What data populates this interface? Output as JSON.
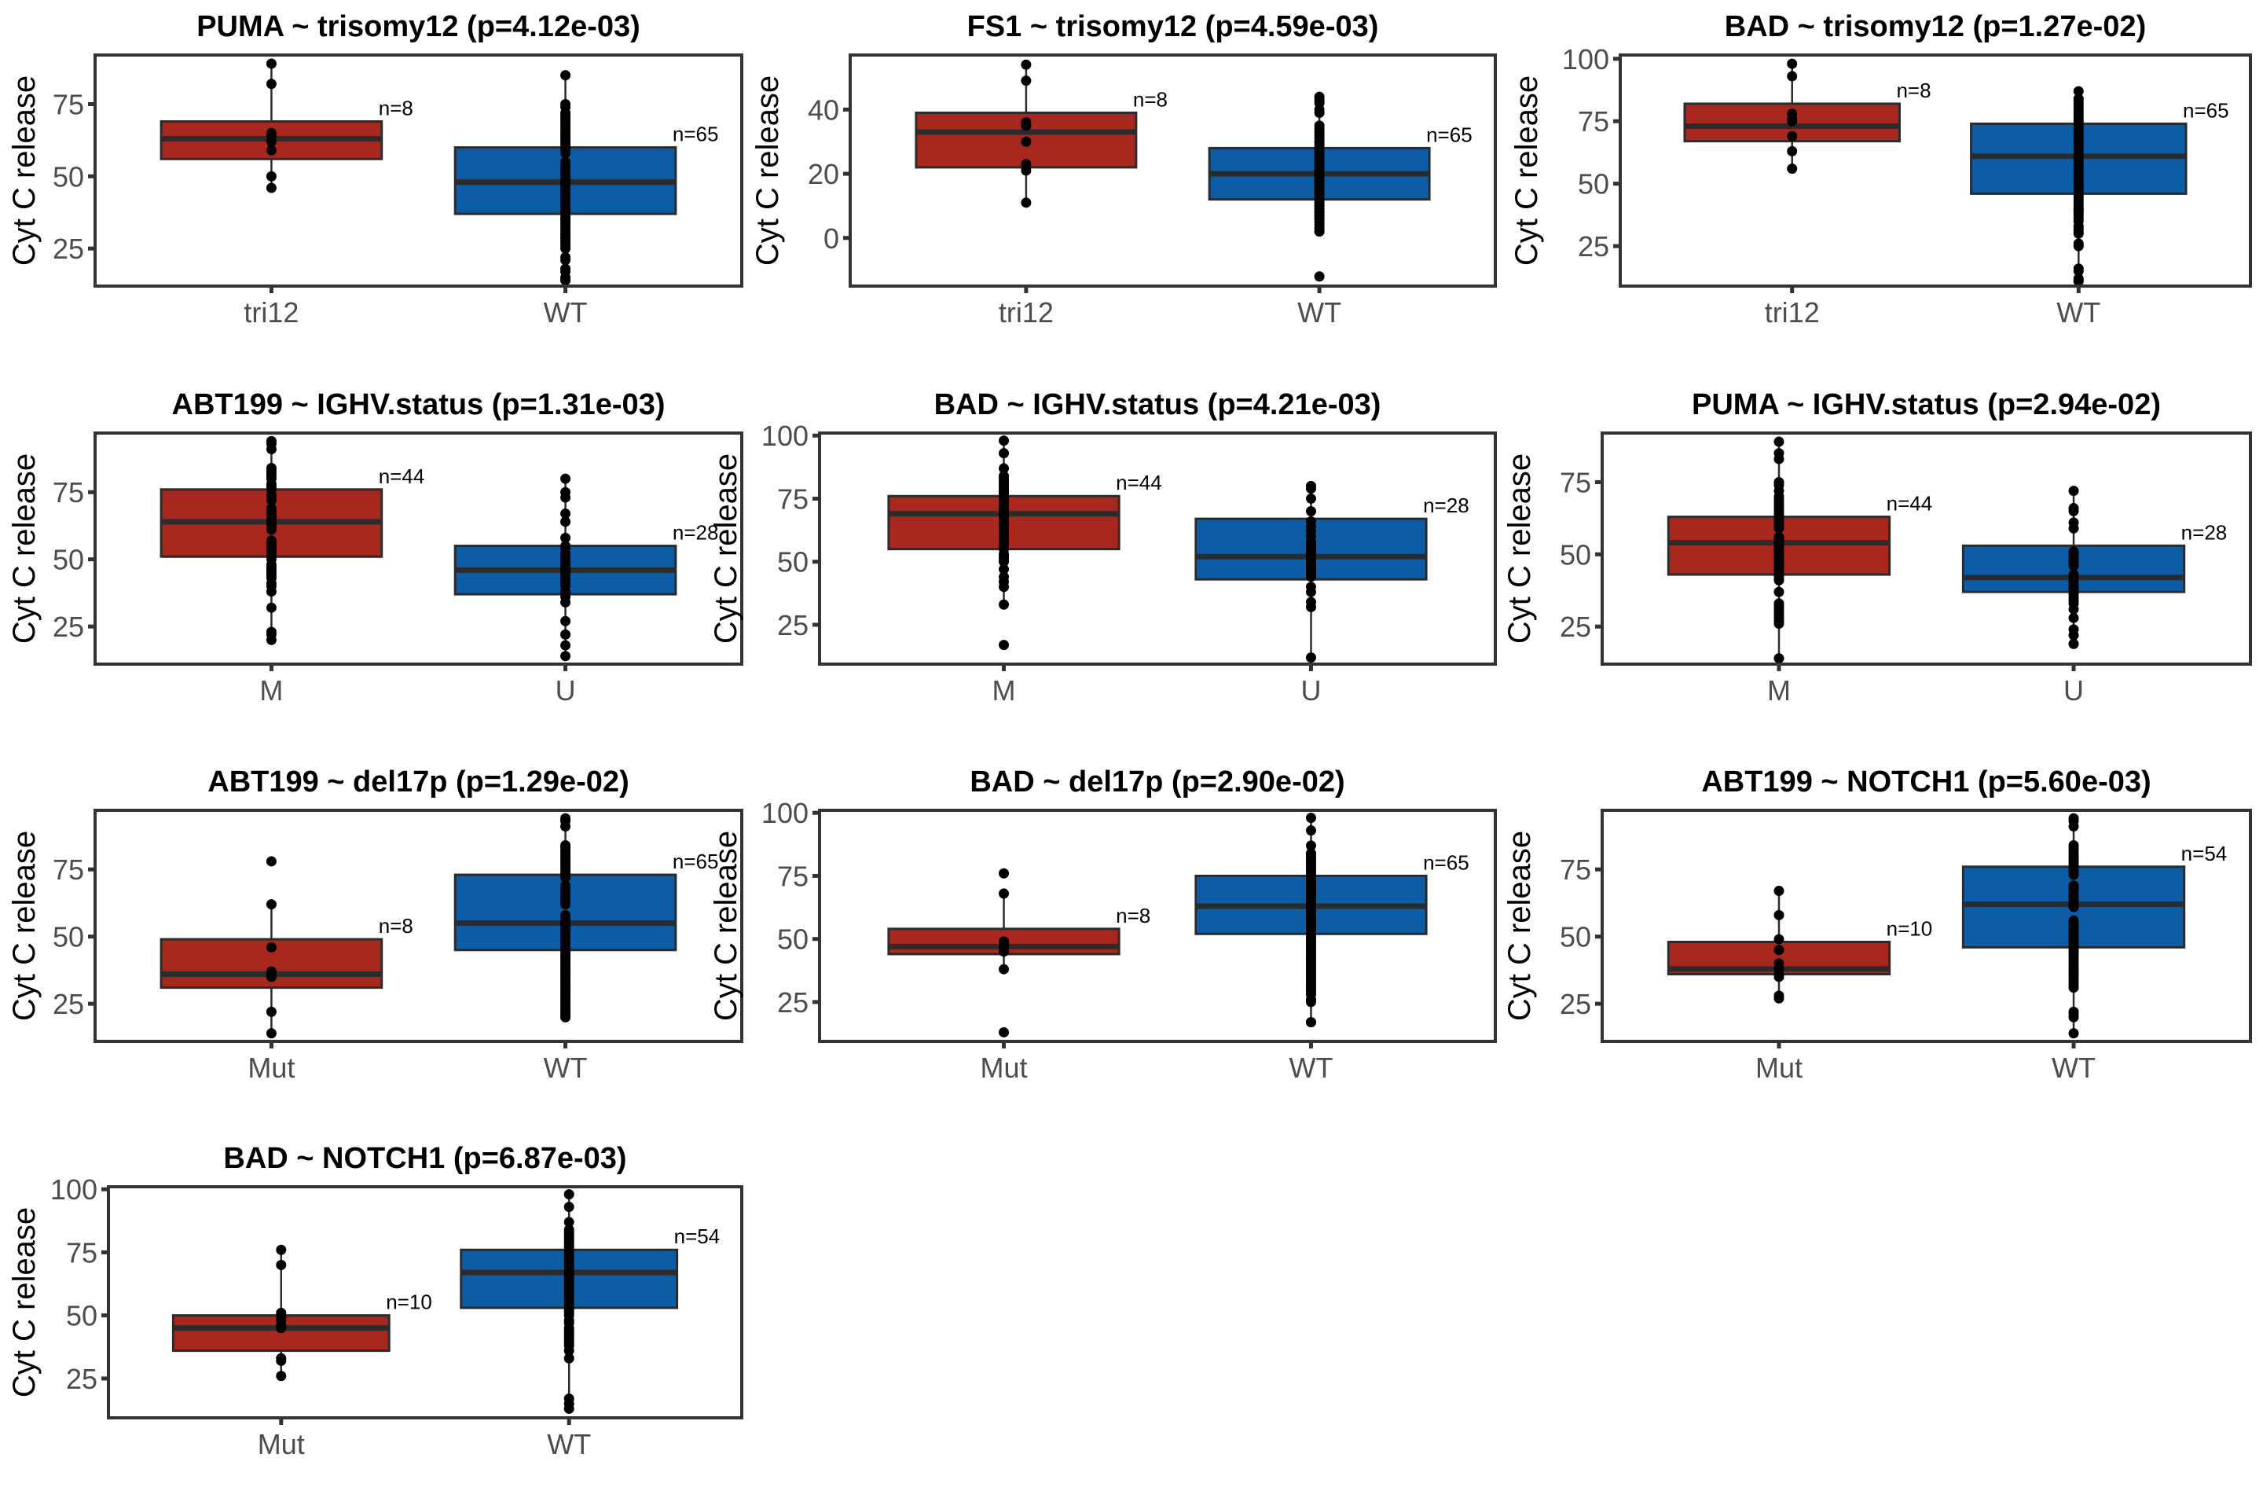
{
  "figure": {
    "colors": {
      "group1": "#A82820",
      "group2": "#0C5DA5",
      "outline": "#2B2B2B",
      "point": "#000000",
      "axis": "#333333"
    }
  },
  "chart_data": [
    {
      "type": "box",
      "title": "PUMA ~ trisomy12 (p=4.12e-03)",
      "ylabel": "Cyt C release",
      "xlabel": "",
      "ylim": [
        12,
        92
      ],
      "yticks": [
        25,
        50,
        75
      ],
      "groups": [
        {
          "name": "tri12",
          "n_label": "n=8",
          "whisker_low": 46,
          "q1": 56,
          "median": 63,
          "q3": 69,
          "whisker_high": 89,
          "points": [
            89,
            82,
            65,
            64,
            62,
            59,
            50,
            46
          ]
        },
        {
          "name": "WT",
          "n_label": "n=65",
          "whisker_low": 14,
          "q1": 37,
          "median": 48,
          "q3": 60,
          "whisker_high": 85,
          "points": [
            85,
            75,
            74,
            72,
            71,
            70,
            69,
            68,
            67,
            66,
            65,
            64,
            63,
            62,
            61,
            60,
            59,
            58,
            55,
            54,
            53,
            52,
            51,
            50,
            50,
            49,
            48,
            48,
            47,
            47,
            46,
            45,
            45,
            44,
            43,
            42,
            42,
            41,
            40,
            40,
            39,
            38,
            38,
            37,
            36,
            35,
            35,
            34,
            33,
            32,
            31,
            30,
            29,
            29,
            28,
            27,
            26,
            25,
            22,
            21,
            18,
            17,
            15,
            14,
            14
          ]
        }
      ]
    },
    {
      "type": "box",
      "title": "FS1 ~ trisomy12 (p=4.59e-03)",
      "ylabel": "Cyt C release",
      "xlabel": "",
      "ylim": [
        -15,
        57
      ],
      "yticks": [
        0,
        20,
        40
      ],
      "groups": [
        {
          "name": "tri12",
          "n_label": "n=8",
          "whisker_low": 11,
          "q1": 22,
          "median": 33,
          "q3": 39,
          "whisker_high": 54,
          "points": [
            54,
            49,
            36,
            35,
            30,
            23,
            21,
            11
          ]
        },
        {
          "name": "WT",
          "n_label": "n=65",
          "whisker_low": 2,
          "q1": 12,
          "median": 20,
          "q3": 28,
          "whisker_high": 44,
          "points": [
            44,
            43,
            42,
            40,
            39,
            35,
            34,
            33,
            32,
            31,
            30,
            30,
            29,
            28,
            28,
            27,
            27,
            26,
            25,
            25,
            24,
            24,
            23,
            23,
            22,
            22,
            21,
            21,
            20,
            20,
            20,
            19,
            19,
            18,
            18,
            17,
            17,
            16,
            16,
            15,
            15,
            14,
            14,
            13,
            13,
            12,
            12,
            11,
            11,
            10,
            10,
            9,
            9,
            8,
            8,
            7,
            7,
            6,
            6,
            5,
            4,
            3,
            2,
            2,
            -12
          ]
        }
      ]
    },
    {
      "type": "box",
      "title": "BAD ~ trisomy12 (p=1.27e-02)",
      "ylabel": "Cyt C release",
      "xlabel": "",
      "ylim": [
        9,
        101.5
      ],
      "yticks": [
        25,
        50,
        75,
        100
      ],
      "groups": [
        {
          "name": "tri12",
          "n_label": "n=8",
          "whisker_low": 56,
          "q1": 67,
          "median": 73,
          "q3": 82,
          "whisker_high": 98,
          "points": [
            98,
            93,
            78,
            76,
            75,
            69,
            63,
            56
          ]
        },
        {
          "name": "WT",
          "n_label": "n=65",
          "whisker_low": 11,
          "q1": 46,
          "median": 61,
          "q3": 74,
          "whisker_high": 87,
          "points": [
            87,
            84,
            83,
            82,
            81,
            80,
            79,
            78,
            77,
            76,
            75,
            74,
            73,
            72,
            71,
            70,
            69,
            68,
            67,
            66,
            65,
            64,
            63,
            62,
            61,
            61,
            60,
            59,
            58,
            57,
            56,
            55,
            54,
            53,
            52,
            51,
            50,
            50,
            49,
            48,
            47,
            46,
            45,
            44,
            43,
            42,
            41,
            40,
            40,
            39,
            38,
            37,
            36,
            35,
            33,
            32,
            31,
            30,
            26,
            25,
            16,
            15,
            12,
            11,
            11
          ]
        }
      ]
    },
    {
      "type": "box",
      "title": "ABT199 ~ IGHV.status (p=1.31e-03)",
      "ylabel": "Cyt C release",
      "xlabel": "",
      "ylim": [
        11,
        97
      ],
      "yticks": [
        25,
        50,
        75
      ],
      "groups": [
        {
          "name": "M",
          "n_label": "n=44",
          "whisker_low": 20,
          "q1": 51,
          "median": 64,
          "q3": 76,
          "whisker_high": 94,
          "points": [
            94,
            93,
            91,
            84,
            83,
            82,
            81,
            80,
            78,
            77,
            76,
            74,
            73,
            72,
            69,
            68,
            67,
            66,
            65,
            64,
            63,
            62,
            61,
            57,
            56,
            55,
            54,
            53,
            52,
            51,
            50,
            48,
            47,
            46,
            45,
            44,
            43,
            41,
            40,
            38,
            32,
            23,
            22,
            20
          ]
        },
        {
          "name": "U",
          "n_label": "n=28",
          "whisker_low": 14,
          "q1": 37,
          "median": 46,
          "q3": 55,
          "whisker_high": 80,
          "points": [
            80,
            75,
            73,
            67,
            64,
            58,
            55,
            54,
            52,
            51,
            50,
            49,
            48,
            47,
            46,
            45,
            44,
            43,
            42,
            41,
            40,
            38,
            36,
            34,
            27,
            22,
            18,
            14
          ]
        }
      ]
    },
    {
      "type": "box",
      "title": "BAD ~ IGHV.status (p=4.21e-03)",
      "ylabel": "Cyt C release",
      "xlabel": "",
      "ylim": [
        9.4,
        101
      ],
      "yticks": [
        25,
        50,
        75,
        100
      ],
      "groups": [
        {
          "name": "M",
          "n_label": "n=44",
          "whisker_low": 33,
          "q1": 55,
          "median": 69,
          "q3": 76,
          "whisker_high": 98,
          "points": [
            98,
            93,
            87,
            84,
            83,
            82,
            81,
            80,
            79,
            78,
            77,
            76,
            75,
            74,
            73,
            72,
            71,
            70,
            69,
            69,
            68,
            67,
            66,
            65,
            64,
            63,
            62,
            61,
            60,
            59,
            58,
            57,
            56,
            55,
            53,
            52,
            51,
            50,
            47,
            44,
            42,
            40,
            33,
            17
          ]
        },
        {
          "name": "U",
          "n_label": "n=28",
          "whisker_low": 12,
          "q1": 43,
          "median": 52,
          "q3": 67,
          "whisker_high": 80,
          "points": [
            80,
            79,
            75,
            70,
            66,
            64,
            62,
            60,
            58,
            57,
            56,
            55,
            54,
            53,
            52,
            51,
            50,
            49,
            48,
            47,
            46,
            45,
            44,
            40,
            38,
            34,
            32,
            12
          ]
        }
      ]
    },
    {
      "type": "box",
      "title": "PUMA ~ IGHV.status (p=2.94e-02)",
      "ylabel": "Cyt C release",
      "xlabel": "",
      "ylim": [
        12,
        92
      ],
      "yticks": [
        25,
        50,
        75
      ],
      "groups": [
        {
          "name": "M",
          "n_label": "n=44",
          "whisker_low": 14,
          "q1": 43,
          "median": 54,
          "q3": 63,
          "whisker_high": 89,
          "points": [
            89,
            85,
            83,
            75,
            74,
            72,
            70,
            69,
            68,
            67,
            66,
            65,
            64,
            63,
            62,
            61,
            60,
            59,
            56,
            55,
            54,
            53,
            52,
            51,
            50,
            49,
            48,
            47,
            46,
            45,
            44,
            43,
            42,
            41,
            37,
            33,
            32,
            31,
            30,
            29,
            28,
            27,
            26,
            14
          ]
        },
        {
          "name": "U",
          "n_label": "n=28",
          "whisker_low": 19,
          "q1": 37,
          "median": 42,
          "q3": 53,
          "whisker_high": 72,
          "points": [
            72,
            66,
            65,
            61,
            59,
            51,
            50,
            49,
            48,
            47,
            46,
            43,
            42,
            41,
            40,
            39,
            38,
            37,
            36,
            35,
            34,
            33,
            31,
            28,
            24,
            22,
            19,
            19
          ]
        }
      ]
    },
    {
      "type": "box",
      "title": "ABT199 ~ del17p (p=1.29e-02)",
      "ylabel": "Cyt C release",
      "xlabel": "",
      "ylim": [
        11,
        97
      ],
      "yticks": [
        25,
        50,
        75
      ],
      "groups": [
        {
          "name": "Mut",
          "n_label": "n=8",
          "whisker_low": 14,
          "q1": 31,
          "median": 36,
          "q3": 49,
          "whisker_high": 62,
          "points": [
            78,
            62,
            46,
            37,
            36,
            35,
            22,
            14
          ]
        },
        {
          "name": "WT",
          "n_label": "n=65",
          "whisker_low": 20,
          "q1": 45,
          "median": 55,
          "q3": 73,
          "whisker_high": 94,
          "points": [
            94,
            93,
            91,
            84,
            83,
            82,
            81,
            80,
            79,
            78,
            77,
            76,
            75,
            74,
            73,
            72,
            69,
            68,
            67,
            66,
            65,
            64,
            63,
            62,
            58,
            57,
            56,
            55,
            55,
            54,
            53,
            52,
            51,
            50,
            49,
            48,
            47,
            46,
            45,
            44,
            43,
            42,
            41,
            40,
            39,
            38,
            37,
            36,
            35,
            34,
            33,
            32,
            31,
            30,
            29,
            28,
            27,
            26,
            25,
            24,
            23,
            22,
            21,
            20,
            20
          ]
        }
      ]
    },
    {
      "type": "box",
      "title": "BAD ~ del17p (p=2.90e-02)",
      "ylabel": "Cyt C release",
      "xlabel": "",
      "ylim": [
        9.4,
        101
      ],
      "yticks": [
        25,
        50,
        75,
        100
      ],
      "groups": [
        {
          "name": "Mut",
          "n_label": "n=8",
          "whisker_low": 38,
          "q1": 44,
          "median": 47,
          "q3": 54,
          "whisker_high": 68,
          "points": [
            76,
            68,
            49,
            48,
            47,
            45,
            38,
            13
          ]
        },
        {
          "name": "WT",
          "n_label": "n=65",
          "whisker_low": 17,
          "q1": 52,
          "median": 63,
          "q3": 75,
          "whisker_high": 98,
          "points": [
            98,
            93,
            87,
            84,
            83,
            82,
            81,
            80,
            79,
            78,
            77,
            76,
            75,
            74,
            73,
            72,
            71,
            70,
            69,
            68,
            67,
            66,
            65,
            64,
            63,
            63,
            62,
            61,
            60,
            59,
            58,
            57,
            56,
            55,
            54,
            53,
            52,
            51,
            50,
            49,
            48,
            47,
            46,
            45,
            44,
            43,
            42,
            41,
            40,
            39,
            38,
            37,
            36,
            35,
            34,
            33,
            32,
            31,
            30,
            29,
            28,
            26,
            25,
            17,
            17
          ]
        }
      ]
    },
    {
      "type": "box",
      "title": "ABT199 ~ NOTCH1 (p=5.60e-03)",
      "ylabel": "Cyt C release",
      "xlabel": "",
      "ylim": [
        11,
        97
      ],
      "yticks": [
        25,
        50,
        75
      ],
      "groups": [
        {
          "name": "Mut",
          "n_label": "n=10",
          "whisker_low": 27,
          "q1": 36,
          "median": 38,
          "q3": 48,
          "whisker_high": 67,
          "points": [
            67,
            58,
            49,
            45,
            40,
            38,
            36,
            35,
            28,
            27
          ]
        },
        {
          "name": "WT",
          "n_label": "n=54",
          "whisker_low": 14,
          "q1": 46,
          "median": 62,
          "q3": 76,
          "whisker_high": 94,
          "points": [
            94,
            93,
            91,
            84,
            83,
            82,
            81,
            80,
            79,
            78,
            77,
            76,
            75,
            74,
            73,
            69,
            68,
            67,
            66,
            65,
            64,
            63,
            62,
            61,
            56,
            55,
            54,
            53,
            52,
            51,
            50,
            49,
            48,
            47,
            46,
            45,
            44,
            43,
            42,
            41,
            40,
            39,
            38,
            37,
            36,
            35,
            34,
            33,
            32,
            31,
            22,
            21,
            20,
            14
          ]
        }
      ]
    },
    {
      "type": "box",
      "title": "BAD ~ NOTCH1 (p=6.87e-03)",
      "ylabel": "Cyt C release",
      "xlabel": "",
      "ylim": [
        9.4,
        101
      ],
      "yticks": [
        25,
        50,
        75,
        100
      ],
      "groups": [
        {
          "name": "Mut",
          "n_label": "n=10",
          "whisker_low": 26,
          "q1": 36,
          "median": 45,
          "q3": 50,
          "whisker_high": 76,
          "points": [
            76,
            70,
            51,
            49,
            48,
            46,
            45,
            33,
            32,
            26
          ]
        },
        {
          "name": "WT",
          "n_label": "n=54",
          "whisker_low": 13,
          "q1": 53,
          "median": 67,
          "q3": 76,
          "whisker_high": 98,
          "points": [
            98,
            93,
            87,
            84,
            83,
            82,
            81,
            80,
            79,
            78,
            77,
            76,
            75,
            74,
            73,
            72,
            71,
            70,
            69,
            68,
            67,
            67,
            66,
            65,
            64,
            63,
            62,
            61,
            60,
            59,
            58,
            57,
            56,
            55,
            54,
            53,
            52,
            51,
            50,
            48,
            47,
            45,
            44,
            43,
            42,
            41,
            40,
            39,
            38,
            36,
            33,
            17,
            15,
            13
          ]
        }
      ]
    }
  ]
}
